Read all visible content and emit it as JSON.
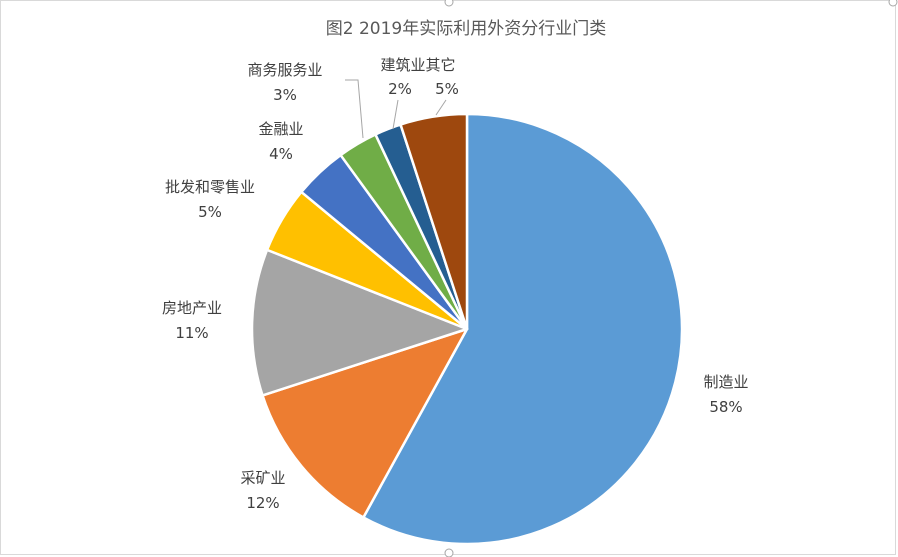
{
  "chart_data": {
    "type": "pie",
    "title": "图2    2019年实际利用外资分行业门类",
    "start_angle_deg": 0,
    "direction": "clockwise",
    "slices": [
      {
        "name": "制造业",
        "value": 58,
        "label": "58%",
        "color": "#5B9BD5"
      },
      {
        "name": "采矿业",
        "value": 12,
        "label": "12%",
        "color": "#ED7D31"
      },
      {
        "name": "房地产业",
        "value": 11,
        "label": "11%",
        "color": "#A5A5A5"
      },
      {
        "name": "批发和零售业",
        "value": 5,
        "label": "5%",
        "color": "#FFC000"
      },
      {
        "name": "金融业",
        "value": 4,
        "label": "4%",
        "color": "#4472C4"
      },
      {
        "name": "商务服务业",
        "value": 3,
        "label": "3%",
        "color": "#70AD47"
      },
      {
        "name": "建筑业",
        "value": 2,
        "label": "2%",
        "color": "#255E91"
      },
      {
        "name": "其它",
        "value": 5,
        "label": "5%",
        "color": "#9E480E"
      }
    ]
  }
}
